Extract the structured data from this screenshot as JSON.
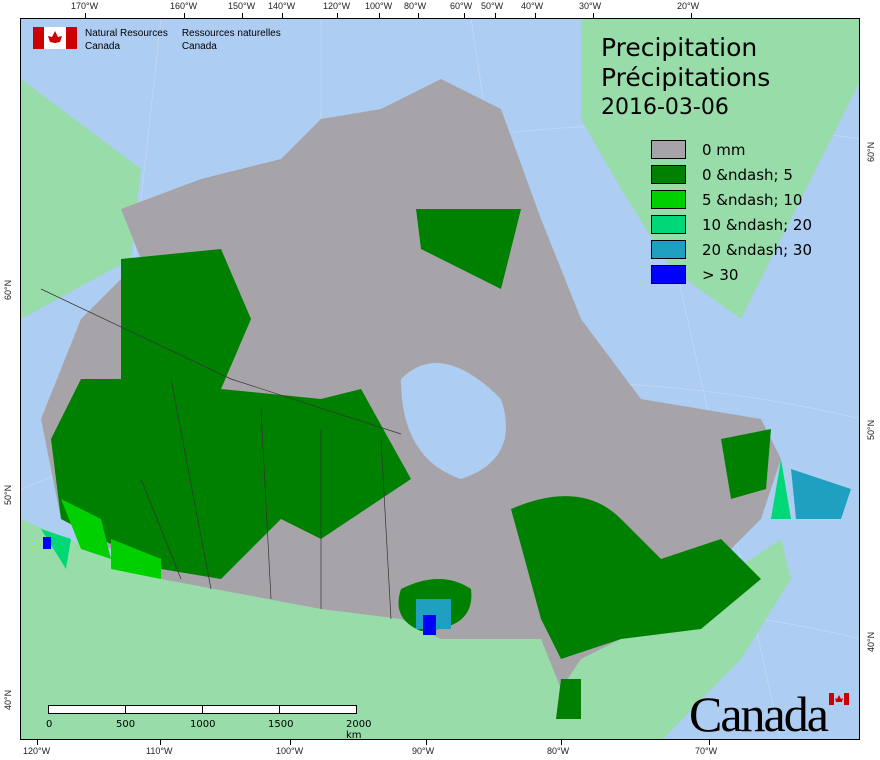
{
  "title": {
    "en": "Precipitation",
    "fr": "Précipitations",
    "date": "2016-03-06"
  },
  "agency": {
    "en_line1": "Natural Resources",
    "en_line2": "Canada",
    "fr_line1": "Ressources naturelles",
    "fr_line2": "Canada"
  },
  "legend": [
    {
      "label": "0 mm",
      "color": "#a7a4a9"
    },
    {
      "label": "0 &ndash; 5",
      "color": "#008000"
    },
    {
      "label": "5 &ndash; 10",
      "color": "#00d000"
    },
    {
      "label": "10 &ndash; 20",
      "color": "#00d878"
    },
    {
      "label": "20 &ndash; 30",
      "color": "#20a0c0"
    },
    {
      "label": "> 30",
      "color": "#0000ff"
    }
  ],
  "top_ticks": [
    "170°W",
    "160°W",
    "150°W",
    "140°W",
    "120°W",
    "100°W",
    "80°W",
    "60°W",
    "50°W",
    "40°W",
    "30°W",
    "20°W"
  ],
  "bottom_ticks": [
    "120°W",
    "110°W",
    "100°W",
    "90°W",
    "80°W",
    "70°W"
  ],
  "left_ticks": [
    "60°N",
    "50°N",
    "40°N"
  ],
  "right_ticks": [
    "60°N",
    "50°N",
    "40°N"
  ],
  "scale_bar": {
    "labels": [
      "0",
      "500",
      "1000",
      "1500",
      "2000 km"
    ]
  },
  "wordmark": "Canada",
  "colors": {
    "ocean": "#aecdf2",
    "foreign_land": "#98dcaa",
    "no_precip": "#a7a4a9"
  }
}
